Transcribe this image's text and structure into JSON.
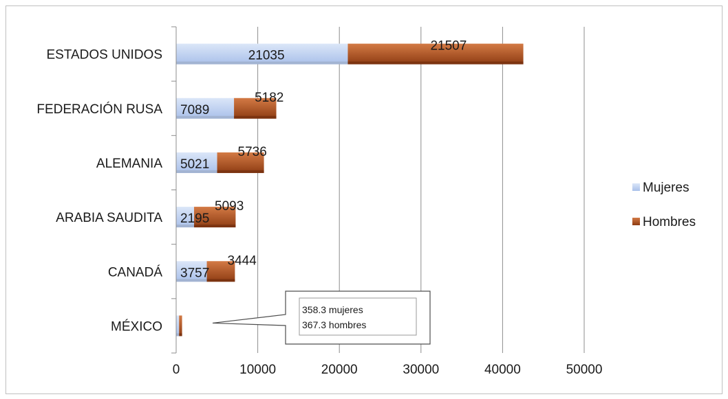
{
  "chart_data": {
    "type": "bar",
    "orientation": "horizontal",
    "stacked": true,
    "categories": [
      "ESTADOS UNIDOS",
      "FEDERACIÓN RUSA",
      "ALEMANIA",
      "ARABIA SAUDITA",
      "CANADÁ",
      "MÉXICO"
    ],
    "series": [
      {
        "name": "Mujeres",
        "values": [
          21035,
          7089,
          5021,
          2195,
          3757,
          358.3
        ],
        "color": "#c5d5f0"
      },
      {
        "name": "Hombres",
        "values": [
          21507,
          5182,
          5736,
          5093,
          3444,
          367.3
        ],
        "color": "#b5541f"
      }
    ],
    "data_labels": [
      [
        "21035",
        "21507"
      ],
      [
        "7089",
        "5182"
      ],
      [
        "5021",
        "5736"
      ],
      [
        "2195",
        "5093"
      ],
      [
        "3757",
        "3444"
      ],
      [
        null,
        null
      ]
    ],
    "xlim": [
      0,
      50000
    ],
    "x_ticks": [
      0,
      10000,
      20000,
      30000,
      40000,
      50000
    ],
    "x_tick_labels": [
      "0",
      "10000",
      "20000",
      "30000",
      "40000",
      "50000"
    ],
    "grid": "vertical",
    "legend_position": "right",
    "callout": {
      "lines": [
        "358.3 mujeres",
        "367.3 hombres"
      ],
      "target_category": "MÉXICO"
    }
  }
}
